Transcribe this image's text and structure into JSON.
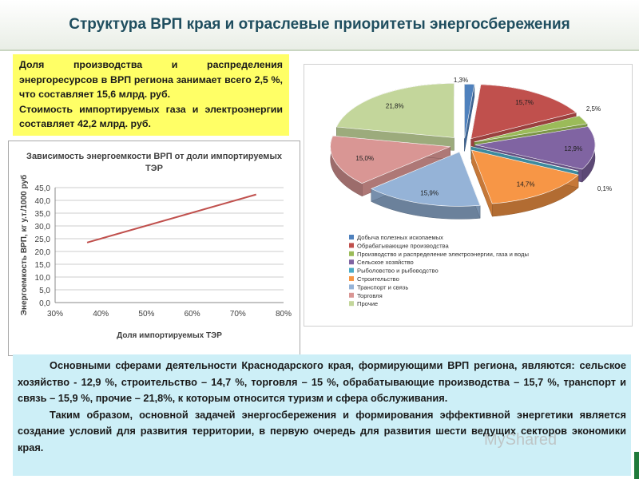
{
  "title": "Структура ВРП края  и отраслевые приоритеты энергосбережения",
  "note": {
    "p1": "Доля производства и распределения энергоресурсов в ВРП региона занимает всего 2,5 %, что составляет 15,6 млрд. руб.",
    "p2": "Стоимость импортируемых газа и электроэнергии составляет 42,2 млрд. руб."
  },
  "bottom_text": {
    "p1": "Основными сферами деятельности Краснодарского края, формирующими ВРП региона, являются: сельское хозяйство - 12,9 %, строительство – 14,7 %, торговля – 15 %, обрабатывающие производства – 15,7 %, транспорт и связь – 15,9 %, прочие – 21,8%, к которым относится туризм и сфера обслуживания.",
    "p2": "Таким образом, основной задачей энергосбережения и формирования эффективной энергетики является создание условий для развития территории, в первую очередь для развития шести ведущих секторов экономики края."
  },
  "watermark": "MyShared",
  "chart_data": [
    {
      "type": "line",
      "title": "Зависимость энергоемкости ВРП от доли импортируемых ТЭР",
      "xlabel": "Доля импортируемых ТЭР",
      "ylabel": "Энергоемкость ВРП, кг у.т./1000 руб",
      "x_ticks": [
        "30%",
        "40%",
        "50%",
        "60%",
        "70%",
        "80%"
      ],
      "y_ticks": [
        "0,0",
        "5,0",
        "10,0",
        "15,0",
        "20,0",
        "25,0",
        "30,0",
        "35,0",
        "40,0",
        "45,0"
      ],
      "xlim": [
        30,
        80
      ],
      "ylim": [
        0,
        45
      ],
      "grid": true,
      "color": "#c0504d",
      "series": [
        {
          "x": [
            37,
            74
          ],
          "y": [
            23.5,
            42.3
          ]
        }
      ]
    },
    {
      "type": "pie",
      "legend_position": "bottom",
      "slices": [
        {
          "label": "Добыча полезных ископаемых",
          "value": 1.3,
          "value_label": "1,3%",
          "color": "#4f81bd"
        },
        {
          "label": "Обрабатывающие производства",
          "value": 15.7,
          "value_label": "15,7%",
          "color": "#c0504d"
        },
        {
          "label": "Производство и распределение электроэнергии, газа и воды",
          "value": 2.5,
          "value_label": "2,5%",
          "color": "#9bbb59"
        },
        {
          "label": "Сельское хозяйство",
          "value": 12.9,
          "value_label": "12,9%",
          "color": "#8064a2"
        },
        {
          "label": "Рыболовство и рыбоводство",
          "value": 0.1,
          "value_label": "0,1%",
          "color": "#4bacc6"
        },
        {
          "label": "Строительство",
          "value": 14.7,
          "value_label": "14,7%",
          "color": "#f79646"
        },
        {
          "label": "Транспорт и связь",
          "value": 15.9,
          "value_label": "15,9%",
          "color": "#95b3d7"
        },
        {
          "label": "Торговля",
          "value": 15.0,
          "value_label": "15,0%",
          "color": "#d99694"
        },
        {
          "label": "Прочие",
          "value": 21.8,
          "value_label": "21,8%",
          "color": "#c3d69b"
        }
      ]
    }
  ]
}
